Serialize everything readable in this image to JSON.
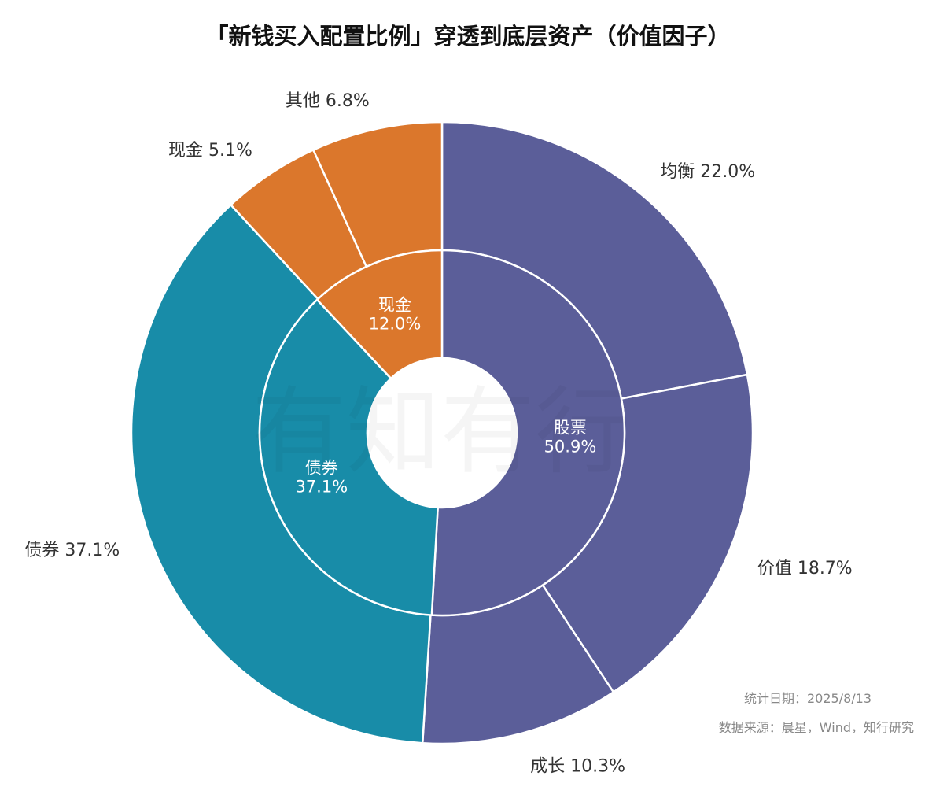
{
  "chart_data": {
    "type": "pie",
    "variant": "nested-donut",
    "title": "「新钱买入配置比例」穿透到底层资产（价值因子）",
    "inner": [
      {
        "name": "股票",
        "value": 50.9,
        "color": "#5b5e99"
      },
      {
        "name": "债券",
        "value": 37.1,
        "color": "#188ca8"
      },
      {
        "name": "现金",
        "value": 12.0,
        "color": "#db772c"
      }
    ],
    "outer": [
      {
        "name": "均衡",
        "value": 22.0,
        "color": "#5b5e99"
      },
      {
        "name": "价值",
        "value": 18.7,
        "color": "#5b5e99"
      },
      {
        "name": "成长",
        "value": 10.3,
        "color": "#5b5e99"
      },
      {
        "name": "债券",
        "value": 37.1,
        "color": "#188ca8"
      },
      {
        "name": "现金",
        "value": 5.1,
        "color": "#db772c"
      },
      {
        "name": "其他",
        "value": 6.8,
        "color": "#db772c"
      }
    ]
  },
  "footer": {
    "date": "统计日期：2025/8/13",
    "source": "数据来源：晨星，Wind，知行研究"
  },
  "watermark": "有知有行"
}
